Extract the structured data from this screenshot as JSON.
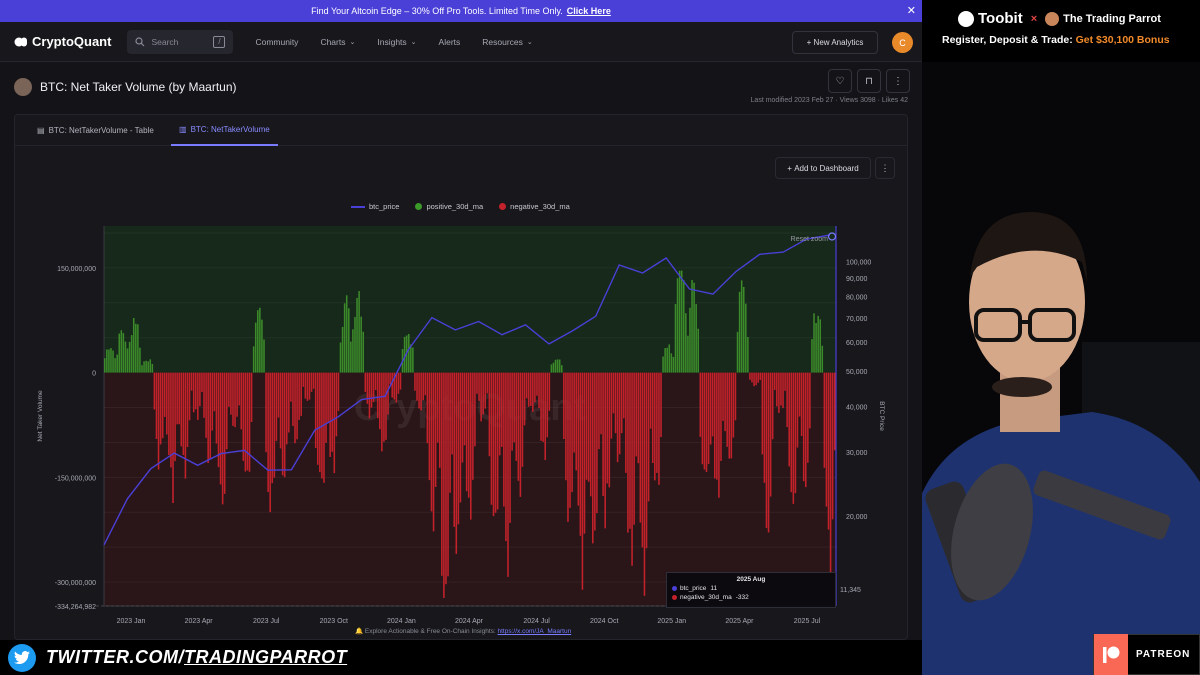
{
  "promo": {
    "text": "Find Your Altcoin Edge – 30% Off Pro Tools. Limited Time Only.",
    "link": "Click Here"
  },
  "nav": {
    "logo": "CryptoQuant",
    "search_placeholder": "Search",
    "items": [
      "Community",
      "Charts",
      "Insights",
      "Alerts",
      "Resources"
    ],
    "new_analytics": "New Analytics",
    "user_initial": "C"
  },
  "page": {
    "title": "BTC: Net Taker Volume (by Maartun)",
    "meta": "Last modified 2023 Feb 27  ·  Views 3098  ·  Likes 42"
  },
  "tabs": [
    "BTC: NetTakerVolume - Table",
    "BTC: NetTakerVolume"
  ],
  "add_dashboard": "Add to Dashboard",
  "footer_note": {
    "text": "🔔 Explore Actionable & Free On-Chain Insights:",
    "link": "https://x.com/JA_Maartun"
  },
  "chart_data": {
    "type": "bar",
    "legend": [
      "btc_price",
      "positive_30d_ma",
      "negative_30d_ma"
    ],
    "colors": {
      "btc_price": "#4a3fd6",
      "positive": "#3c8a2a",
      "negative": "#c4222b"
    },
    "reset_zoom": "Reset zoom",
    "ylabel_left": "Net Taker Volume",
    "ylabel_right": "BTC Price",
    "left_ticks": [
      "150,000,000",
      "0",
      "-150,000,000",
      "-300,000,000"
    ],
    "left_min_label": "-334,264,982",
    "right_ticks": [
      "100,000",
      "90,000",
      "80,000",
      "70,000",
      "60,000",
      "50,000",
      "40,000",
      "30,000",
      "20,000"
    ],
    "right_partial": "11,345",
    "x_ticks": [
      "2023 Jan",
      "2023 Apr",
      "2023 Jul",
      "2023 Oct",
      "2024 Jan",
      "2024 Apr",
      "2024 Jul",
      "2024 Oct",
      "2025 Jan",
      "2025 Apr",
      "2025 Jul"
    ],
    "watermark": "CryptoQuant",
    "ylim_volume": [
      -334264982,
      210000000
    ],
    "price_series": [
      {
        "date": "2023 Jan",
        "price": 16800
      },
      {
        "date": "2023 Feb",
        "price": 22500
      },
      {
        "date": "2023 Mar",
        "price": 26500
      },
      {
        "date": "2023 Apr",
        "price": 29500
      },
      {
        "date": "2023 May",
        "price": 27200
      },
      {
        "date": "2023 Jun",
        "price": 29500
      },
      {
        "date": "2023 Jul",
        "price": 29800
      },
      {
        "date": "2023 Aug",
        "price": 26500
      },
      {
        "date": "2023 Sep",
        "price": 26800
      },
      {
        "date": "2023 Oct",
        "price": 34500
      },
      {
        "date": "2023 Nov",
        "price": 37500
      },
      {
        "date": "2023 Dec",
        "price": 42500
      },
      {
        "date": "2024 Jan",
        "price": 42000
      },
      {
        "date": "2024 Feb",
        "price": 57000
      },
      {
        "date": "2024 Mar",
        "price": 69000
      },
      {
        "date": "2024 Apr",
        "price": 64000
      },
      {
        "date": "2024 May",
        "price": 67500
      },
      {
        "date": "2024 Jun",
        "price": 62500
      },
      {
        "date": "2024 Jul",
        "price": 66000
      },
      {
        "date": "2024 Aug",
        "price": 59000
      },
      {
        "date": "2024 Sep",
        "price": 63500
      },
      {
        "date": "2024 Oct",
        "price": 70500
      },
      {
        "date": "2024 Nov",
        "price": 97000
      },
      {
        "date": "2024 Dec",
        "price": 94000
      },
      {
        "date": "2025 Jan",
        "price": 102000
      },
      {
        "date": "2025 Feb",
        "price": 84000
      },
      {
        "date": "2025 Mar",
        "price": 82500
      },
      {
        "date": "2025 Apr",
        "price": 94500
      },
      {
        "date": "2025 May",
        "price": 104000
      },
      {
        "date": "2025 Jun",
        "price": 107000
      },
      {
        "date": "2025 Jul",
        "price": 115000
      },
      {
        "date": "2025 Aug",
        "price": 117000
      }
    ],
    "volume_series": [
      40,
      60,
      80,
      20,
      -120,
      -160,
      -140,
      -60,
      -120,
      -200,
      -80,
      -160,
      80,
      -200,
      -140,
      -100,
      -40,
      -180,
      -130,
      100,
      120,
      -60,
      -120,
      -40,
      60,
      -60,
      -200,
      -310,
      -230,
      -180,
      -60,
      -210,
      -250,
      -180,
      -60,
      -110,
      20,
      -220,
      -290,
      -260,
      -200,
      -120,
      -240,
      -300,
      -170,
      40,
      160,
      120,
      -170,
      -160,
      -140,
      120,
      -20,
      -220,
      -60,
      -180,
      -140,
      90,
      -250
    ]
  },
  "tooltip": {
    "date": "2025 Aug",
    "rows": [
      {
        "name": "btc_price",
        "value": "11",
        "color": "#4a3fd6"
      },
      {
        "name": "negative_30d_ma",
        "value": "-332",
        "color": "#c4222b"
      }
    ]
  },
  "sponsor": {
    "brand": "Toobit",
    "separator": "×",
    "partner": "The Trading Parrot",
    "cta_prefix": "Register, Deposit & Trade:",
    "cta_bonus": "Get $30,100 Bonus"
  },
  "social": {
    "prefix": "TWITTER.COM/",
    "handle": "TRADINGPARROT"
  },
  "patreon": "PATREON"
}
